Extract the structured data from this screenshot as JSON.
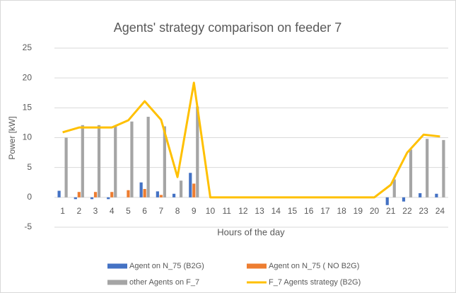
{
  "chart_data": {
    "type": "bar",
    "title": "Agents' strategy comparison on feeder 7",
    "x_label": "Hours of the day",
    "y_label": "Power [kW]",
    "categories": [
      "1",
      "2",
      "3",
      "4",
      "5",
      "6",
      "7",
      "8",
      "9",
      "10",
      "11",
      "12",
      "13",
      "14",
      "15",
      "16",
      "17",
      "18",
      "19",
      "20",
      "21",
      "22",
      "23",
      "24"
    ],
    "series": [
      {
        "name": "Agent on N_75 (B2G)",
        "type": "bar",
        "color": "#4472c4",
        "values": [
          1.1,
          -0.3,
          -0.3,
          -0.3,
          0,
          2.5,
          1.0,
          0.6,
          4.1,
          0,
          0,
          0,
          0,
          0,
          0,
          0,
          0,
          0,
          0,
          0,
          -1.3,
          -0.7,
          0.7,
          0.6
        ]
      },
      {
        "name": "Agent on N_75 ( NO B2G)",
        "type": "bar",
        "color": "#ed7d31",
        "values": [
          0,
          0.9,
          0.9,
          0.9,
          1.2,
          1.4,
          0.4,
          0,
          2.3,
          0,
          0,
          0,
          0,
          0,
          0,
          0,
          0,
          0,
          0,
          0,
          0,
          0,
          0,
          0
        ]
      },
      {
        "name": "other Agents on F_7",
        "type": "bar",
        "color": "#a5a5a5",
        "values": [
          10.0,
          12.1,
          12.1,
          12.0,
          12.7,
          13.5,
          11.9,
          2.8,
          15.2,
          0,
          0,
          0,
          0,
          0,
          0,
          0,
          0,
          0,
          0,
          0,
          3.0,
          8.0,
          9.8,
          9.6
        ]
      },
      {
        "name": "F_7 Agents strategy (B2G)",
        "type": "line",
        "color": "#ffc000",
        "values": [
          10.9,
          11.7,
          11.7,
          11.7,
          12.9,
          16.1,
          13.0,
          3.4,
          19.2,
          0,
          0,
          0,
          0,
          0,
          0,
          0,
          0,
          0,
          0,
          0,
          2.1,
          7.5,
          10.5,
          10.2
        ]
      }
    ],
    "ylim": [
      -5,
      25
    ],
    "yticks": [
      -5,
      0,
      5,
      10,
      15,
      20,
      25
    ],
    "grid": true,
    "legend": "bottom"
  }
}
